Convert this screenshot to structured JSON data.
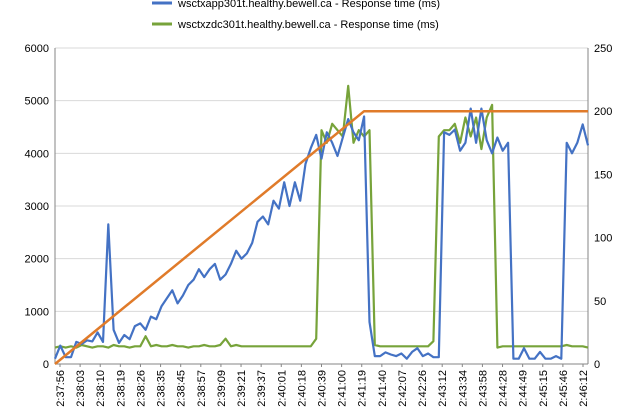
{
  "chart_data": {
    "type": "line",
    "legend": {
      "placement": "top",
      "entries": [
        {
          "name": "wsctxapp301t.healthy.bewell.ca - Response time (ms)",
          "color": "#4472C4"
        },
        {
          "name": "wsctxzdc301t.healthy.bewell.ca - Response time (ms)",
          "color": "#77A33A"
        }
      ]
    },
    "y_left": {
      "min": 0,
      "max": 6000,
      "ticks": [
        "0",
        "1000",
        "2000",
        "3000",
        "4000",
        "5000",
        "6000"
      ]
    },
    "y_right": {
      "min": 0,
      "max": 250,
      "ticks": [
        "0",
        "50",
        "100",
        "150",
        "200",
        "250"
      ]
    },
    "x_range": {
      "min": 0,
      "max": 100
    },
    "x_tick_labels": [
      "2:37:56",
      "2:38:03",
      "2:38:10",
      "2:38:19",
      "2:38:26",
      "2:38:35",
      "2:38:45",
      "2:38:57",
      "2:39:09",
      "2:39:21",
      "2:39:37",
      "2:40:01",
      "2:40:18",
      "2:40:39",
      "2:41:00",
      "2:41:19",
      "2:41:40",
      "2:42:07",
      "2:42:26",
      "2:43:12",
      "2:43:34",
      "2:43:58",
      "2:44:28",
      "2:44:49",
      "2:45:15",
      "2:45:46",
      "2:46:12"
    ],
    "grid": true,
    "series": [
      {
        "name": "wsctxapp301t.healthy.bewell.ca - Response time (ms)",
        "axis": "left",
        "color": "#4472C4",
        "points": [
          [
            0,
            100
          ],
          [
            1,
            350
          ],
          [
            2,
            130
          ],
          [
            3,
            130
          ],
          [
            4,
            420
          ],
          [
            5,
            380
          ],
          [
            6,
            450
          ],
          [
            7,
            430
          ],
          [
            8,
            600
          ],
          [
            9,
            420
          ],
          [
            10,
            2650
          ],
          [
            11,
            650
          ],
          [
            12,
            400
          ],
          [
            13,
            550
          ],
          [
            14,
            470
          ],
          [
            15,
            720
          ],
          [
            16,
            770
          ],
          [
            17,
            650
          ],
          [
            18,
            900
          ],
          [
            19,
            850
          ],
          [
            20,
            1100
          ],
          [
            21,
            1250
          ],
          [
            22,
            1400
          ],
          [
            23,
            1150
          ],
          [
            24,
            1300
          ],
          [
            25,
            1500
          ],
          [
            26,
            1600
          ],
          [
            27,
            1800
          ],
          [
            28,
            1650
          ],
          [
            29,
            1800
          ],
          [
            30,
            1900
          ],
          [
            31,
            1600
          ],
          [
            32,
            1700
          ],
          [
            33,
            1900
          ],
          [
            34,
            2150
          ],
          [
            35,
            2000
          ],
          [
            36,
            2100
          ],
          [
            37,
            2300
          ],
          [
            38,
            2700
          ],
          [
            39,
            2800
          ],
          [
            40,
            2650
          ],
          [
            41,
            3100
          ],
          [
            42,
            2950
          ],
          [
            43,
            3450
          ],
          [
            44,
            3000
          ],
          [
            45,
            3450
          ],
          [
            46,
            3100
          ],
          [
            47,
            3800
          ],
          [
            48,
            4100
          ],
          [
            49,
            4350
          ],
          [
            50,
            3900
          ],
          [
            51,
            4400
          ],
          [
            52,
            4200
          ],
          [
            53,
            3950
          ],
          [
            54,
            4300
          ],
          [
            55,
            4650
          ],
          [
            56,
            4400
          ],
          [
            57,
            4250
          ],
          [
            58,
            4700
          ],
          [
            59,
            800
          ],
          [
            60,
            150
          ],
          [
            61,
            150
          ],
          [
            62,
            220
          ],
          [
            63,
            180
          ],
          [
            64,
            150
          ],
          [
            65,
            200
          ],
          [
            66,
            100
          ],
          [
            67,
            230
          ],
          [
            68,
            300
          ],
          [
            69,
            150
          ],
          [
            70,
            200
          ],
          [
            71,
            130
          ],
          [
            72,
            130
          ],
          [
            73,
            4400
          ],
          [
            74,
            4350
          ],
          [
            75,
            4450
          ],
          [
            76,
            4050
          ],
          [
            77,
            4200
          ],
          [
            78,
            4850
          ],
          [
            79,
            4200
          ],
          [
            80,
            4850
          ],
          [
            81,
            4250
          ],
          [
            82,
            4000
          ],
          [
            83,
            4300
          ],
          [
            84,
            4050
          ],
          [
            85,
            4200
          ],
          [
            86,
            100
          ],
          [
            87,
            100
          ],
          [
            88,
            300
          ],
          [
            89,
            100
          ],
          [
            90,
            100
          ],
          [
            91,
            230
          ],
          [
            92,
            100
          ],
          [
            93,
            100
          ],
          [
            94,
            150
          ],
          [
            95,
            100
          ],
          [
            96,
            4200
          ],
          [
            97,
            4000
          ],
          [
            98,
            4200
          ],
          [
            99,
            4550
          ],
          [
            100,
            4150
          ]
        ]
      },
      {
        "name": "wsctxzdc301t.healthy.bewell.ca - Response time (ms)",
        "axis": "right",
        "color": "#77A33A",
        "points": [
          [
            0,
            13
          ],
          [
            1,
            14
          ],
          [
            2,
            13
          ],
          [
            3,
            14
          ],
          [
            4,
            13
          ],
          [
            5,
            15
          ],
          [
            6,
            14
          ],
          [
            7,
            13
          ],
          [
            8,
            14
          ],
          [
            9,
            14
          ],
          [
            10,
            13
          ],
          [
            11,
            15
          ],
          [
            12,
            14
          ],
          [
            13,
            14
          ],
          [
            14,
            13
          ],
          [
            15,
            14
          ],
          [
            16,
            14
          ],
          [
            17,
            22
          ],
          [
            18,
            14
          ],
          [
            19,
            15
          ],
          [
            20,
            14
          ],
          [
            21,
            14
          ],
          [
            22,
            15
          ],
          [
            23,
            14
          ],
          [
            24,
            14
          ],
          [
            25,
            13
          ],
          [
            26,
            14
          ],
          [
            27,
            14
          ],
          [
            28,
            15
          ],
          [
            29,
            14
          ],
          [
            30,
            14
          ],
          [
            31,
            15
          ],
          [
            32,
            20
          ],
          [
            33,
            14
          ],
          [
            34,
            15
          ],
          [
            35,
            14
          ],
          [
            36,
            14
          ],
          [
            37,
            14
          ],
          [
            38,
            14
          ],
          [
            39,
            14
          ],
          [
            40,
            14
          ],
          [
            41,
            14
          ],
          [
            42,
            14
          ],
          [
            43,
            14
          ],
          [
            44,
            14
          ],
          [
            45,
            14
          ],
          [
            46,
            14
          ],
          [
            47,
            14
          ],
          [
            48,
            14
          ],
          [
            49,
            20
          ],
          [
            50,
            185
          ],
          [
            51,
            175
          ],
          [
            52,
            190
          ],
          [
            53,
            185
          ],
          [
            54,
            180
          ],
          [
            55,
            220
          ],
          [
            56,
            175
          ],
          [
            57,
            185
          ],
          [
            58,
            180
          ],
          [
            59,
            185
          ],
          [
            60,
            15
          ],
          [
            61,
            14
          ],
          [
            62,
            14
          ],
          [
            63,
            14
          ],
          [
            64,
            14
          ],
          [
            65,
            14
          ],
          [
            66,
            14
          ],
          [
            67,
            14
          ],
          [
            68,
            14
          ],
          [
            69,
            14
          ],
          [
            70,
            14
          ],
          [
            71,
            18
          ],
          [
            72,
            180
          ],
          [
            73,
            185
          ],
          [
            74,
            185
          ],
          [
            75,
            190
          ],
          [
            76,
            175
          ],
          [
            77,
            195
          ],
          [
            78,
            180
          ],
          [
            79,
            195
          ],
          [
            80,
            170
          ],
          [
            81,
            195
          ],
          [
            82,
            205
          ],
          [
            83,
            13
          ],
          [
            84,
            14
          ],
          [
            85,
            14
          ],
          [
            86,
            14
          ],
          [
            87,
            14
          ],
          [
            88,
            14
          ],
          [
            89,
            14
          ],
          [
            90,
            14
          ],
          [
            91,
            14
          ],
          [
            92,
            14
          ],
          [
            93,
            14
          ],
          [
            94,
            14
          ],
          [
            95,
            14
          ],
          [
            96,
            15
          ],
          [
            97,
            14
          ],
          [
            98,
            14
          ],
          [
            99,
            14
          ],
          [
            100,
            13
          ]
        ]
      },
      {
        "name": "",
        "axis": "right",
        "color": "#E07B2A",
        "points": [
          [
            0,
            0
          ],
          [
            58,
            200
          ],
          [
            100,
            200
          ]
        ]
      }
    ]
  }
}
